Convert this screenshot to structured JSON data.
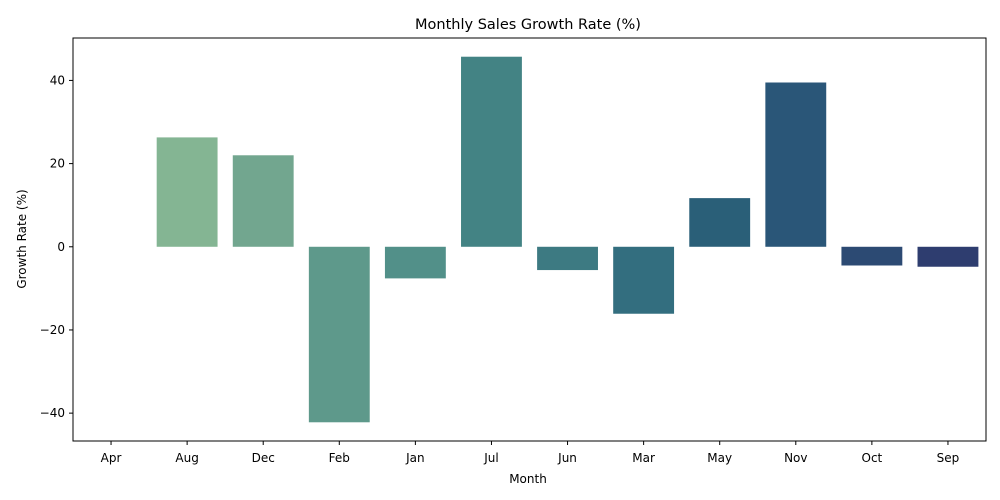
{
  "chart_data": {
    "type": "bar",
    "title": "Monthly Sales Growth Rate (%)",
    "xlabel": "Month",
    "ylabel": "Growth Rate (%)",
    "categories": [
      "Apr",
      "Aug",
      "Dec",
      "Feb",
      "Jan",
      "Jul",
      "Jun",
      "Mar",
      "May",
      "Nov",
      "Oct",
      "Sep"
    ],
    "values": [
      0,
      26.3,
      22.0,
      -42.2,
      -7.6,
      45.7,
      -5.6,
      -16.1,
      11.7,
      39.5,
      -4.5,
      -4.8
    ],
    "colors": [
      "#90bf96",
      "#84b593",
      "#72a68f",
      "#5e998b",
      "#529089",
      "#438384",
      "#3d7a82",
      "#336e7f",
      "#2a5f78",
      "#2a5678",
      "#2c4a73",
      "#2e3d6f"
    ],
    "ylim": [
      -46.7,
      50.2
    ],
    "yticks": [
      -40,
      -20,
      0,
      20,
      40
    ],
    "grid": false,
    "legend": "none"
  }
}
